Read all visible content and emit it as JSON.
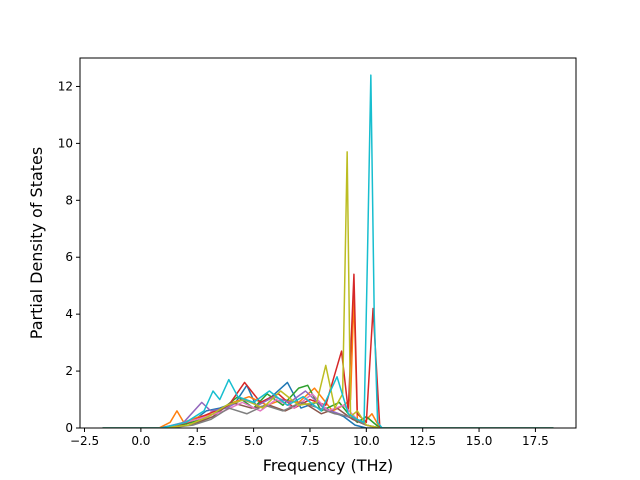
{
  "chart_data": {
    "type": "line",
    "title": "",
    "xlabel": "Frequency (THz)",
    "ylabel": "Partial Density of States",
    "xlim": [
      -2.7,
      19.3
    ],
    "ylim": [
      0,
      13
    ],
    "xticks": [
      -2.5,
      0.0,
      2.5,
      5.0,
      7.5,
      10.0,
      12.5,
      15.0,
      17.5
    ],
    "xtick_labels": [
      "−2.5",
      "0.0",
      "2.5",
      "5.0",
      "7.5",
      "10.0",
      "12.5",
      "15.0",
      "17.5"
    ],
    "yticks": [
      0,
      2,
      4,
      6,
      8,
      10,
      12
    ],
    "ytick_labels": [
      "0",
      "2",
      "4",
      "6",
      "8",
      "10",
      "12"
    ],
    "grid": false,
    "legend": false,
    "colors": [
      "#1f77b4",
      "#ff7f0e",
      "#2ca02c",
      "#d62728",
      "#9467bd",
      "#8c564b",
      "#e377c2",
      "#7f7f7f",
      "#bcbd22",
      "#17becf"
    ],
    "series": [
      {
        "color": "#1f77b4",
        "x": [
          -1.7,
          0.8,
          1.5,
          2.4,
          2.9,
          3.5,
          4.2,
          4.7,
          5.1,
          5.8,
          6.5,
          7.1,
          7.8,
          8.4,
          9.0,
          9.5,
          10.0,
          10.3,
          10.6,
          18.3
        ],
        "y": [
          0,
          0,
          0.1,
          0.3,
          0.6,
          0.7,
          0.9,
          1.5,
          0.8,
          1.1,
          1.6,
          0.7,
          0.9,
          0.6,
          0.4,
          0.1,
          0,
          0,
          0,
          0
        ]
      },
      {
        "color": "#ff7f0e",
        "x": [
          -1.7,
          0.8,
          1.3,
          1.6,
          1.9,
          2.6,
          3.3,
          4.1,
          4.8,
          5.6,
          6.3,
          7.0,
          7.7,
          8.5,
          9.0,
          9.3,
          9.45,
          9.6,
          9.9,
          10.25,
          10.6,
          18.3
        ],
        "y": [
          0,
          0,
          0.2,
          0.6,
          0.2,
          0.4,
          0.5,
          0.9,
          1.1,
          0.8,
          1.0,
          0.9,
          1.4,
          0.6,
          0.8,
          1.0,
          4.6,
          0.3,
          0.2,
          0.5,
          0,
          0
        ]
      },
      {
        "color": "#2ca02c",
        "x": [
          -1.7,
          0.9,
          1.8,
          2.7,
          3.5,
          4.3,
          5.0,
          5.6,
          6.3,
          7.0,
          7.4,
          8.0,
          8.8,
          9.2,
          9.6,
          10.0,
          10.6,
          18.3
        ],
        "y": [
          0,
          0,
          0.1,
          0.3,
          0.6,
          1.1,
          0.7,
          1.2,
          0.8,
          1.4,
          1.5,
          0.6,
          0.9,
          0.5,
          0.2,
          0.4,
          0,
          0
        ]
      },
      {
        "color": "#d62728",
        "x": [
          -1.7,
          1.0,
          2.1,
          3.0,
          3.9,
          4.6,
          5.3,
          6.1,
          6.8,
          7.5,
          8.2,
          8.9,
          9.2,
          9.45,
          9.6,
          10.0,
          10.3,
          10.6,
          18.3
        ],
        "y": [
          0,
          0,
          0.2,
          0.5,
          0.8,
          1.6,
          0.9,
          1.2,
          0.7,
          1.0,
          0.8,
          2.7,
          0.6,
          5.4,
          0.5,
          0.2,
          4.2,
          0,
          0
        ]
      },
      {
        "color": "#9467bd",
        "x": [
          -1.7,
          0.9,
          1.9,
          2.7,
          3.1,
          3.8,
          4.5,
          5.2,
          5.9,
          6.6,
          7.3,
          8.1,
          8.8,
          9.5,
          10.0,
          10.6,
          18.3
        ],
        "y": [
          0,
          0,
          0.2,
          0.9,
          0.6,
          0.7,
          1.0,
          0.8,
          1.1,
          0.9,
          1.3,
          0.7,
          0.5,
          0.3,
          0.1,
          0,
          0
        ]
      },
      {
        "color": "#8c564b",
        "x": [
          -1.7,
          1.1,
          2.2,
          3.2,
          4.0,
          4.9,
          5.7,
          6.4,
          7.2,
          8.0,
          8.7,
          9.4,
          10.0,
          10.6,
          18.3
        ],
        "y": [
          0,
          0,
          0.1,
          0.4,
          0.9,
          0.7,
          0.8,
          0.6,
          0.9,
          0.5,
          0.7,
          0.3,
          0.1,
          0,
          0
        ]
      },
      {
        "color": "#e377c2",
        "x": [
          -1.7,
          1.0,
          2.0,
          2.9,
          3.7,
          4.5,
          5.3,
          6.0,
          6.8,
          7.6,
          8.3,
          9.0,
          9.6,
          10.0,
          10.6,
          18.3
        ],
        "y": [
          0,
          0,
          0.2,
          0.4,
          0.6,
          0.9,
          0.6,
          1.0,
          0.7,
          1.2,
          0.6,
          0.8,
          0.3,
          0.1,
          0,
          0
        ]
      },
      {
        "color": "#7f7f7f",
        "x": [
          -1.7,
          1.2,
          2.3,
          3.1,
          3.9,
          4.7,
          5.5,
          6.3,
          7.1,
          7.9,
          8.6,
          9.3,
          10.0,
          10.6,
          18.3
        ],
        "y": [
          0,
          0,
          0.1,
          0.3,
          0.7,
          0.5,
          0.8,
          0.6,
          0.9,
          0.7,
          0.5,
          0.4,
          0.1,
          0,
          0
        ]
      },
      {
        "color": "#bcbd22",
        "x": [
          -1.7,
          1.0,
          2.1,
          3.0,
          3.8,
          4.6,
          5.4,
          6.2,
          7.0,
          7.8,
          8.2,
          8.6,
          8.95,
          9.15,
          9.3,
          9.6,
          10.0,
          10.6,
          18.3
        ],
        "y": [
          0,
          0,
          0.1,
          0.4,
          0.8,
          1.0,
          0.7,
          1.3,
          0.8,
          0.9,
          2.2,
          0.7,
          1.2,
          9.7,
          0.4,
          0.6,
          0.1,
          0,
          0
        ]
      },
      {
        "color": "#17becf",
        "x": [
          -1.7,
          0.9,
          2.0,
          2.8,
          3.2,
          3.5,
          3.9,
          4.3,
          5.0,
          5.7,
          6.5,
          7.2,
          8.0,
          8.7,
          9.2,
          9.6,
          9.9,
          10.05,
          10.2,
          10.35,
          10.5,
          10.7,
          18.3
        ],
        "y": [
          0,
          0,
          0.2,
          0.6,
          1.3,
          1.0,
          1.7,
          1.1,
          0.9,
          1.3,
          0.8,
          1.1,
          0.6,
          1.8,
          0.5,
          0.3,
          0.2,
          6.0,
          12.4,
          4.0,
          0.2,
          0,
          0
        ]
      }
    ]
  }
}
